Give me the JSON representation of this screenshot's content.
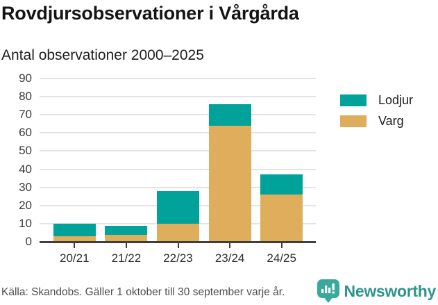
{
  "header": {
    "title": "Rovdjursobservationer i Vårgårda",
    "subtitle": "Antal observationer 2000–2025"
  },
  "chart_data": {
    "type": "bar",
    "stacked": true,
    "title": "Rovdjursobservationer i Vårgårda",
    "subtitle": "Antal observationer 2000–2025",
    "xlabel": "",
    "ylabel": "Antal observationer",
    "ylim": [
      0,
      90
    ],
    "yticks": [
      0,
      10,
      20,
      30,
      40,
      50,
      60,
      70,
      80,
      90
    ],
    "grid": true,
    "legend_position": "right",
    "categories": [
      "20/21",
      "21/22",
      "22/23",
      "23/24",
      "24/25"
    ],
    "series": [
      {
        "name": "Varg",
        "color": "#dfae5c",
        "values": [
          3,
          4,
          10,
          64,
          26
        ]
      },
      {
        "name": "Lodjur",
        "color": "#00a29a",
        "values": [
          7,
          5,
          18,
          12,
          11
        ]
      }
    ],
    "legend_order": [
      "Lodjur",
      "Varg"
    ]
  },
  "footer": {
    "source": "Källa: Skandobs. Gäller 1 oktober till 30 september varje år.",
    "brand": "Newsworthy"
  },
  "colors": {
    "lodjur": "#00a29a",
    "varg": "#dfae5c",
    "gridline": "#e3e3e3",
    "axis": "#3f3f3f",
    "brand_badge": "#3aa89d",
    "brand_text": "#2e948e"
  }
}
